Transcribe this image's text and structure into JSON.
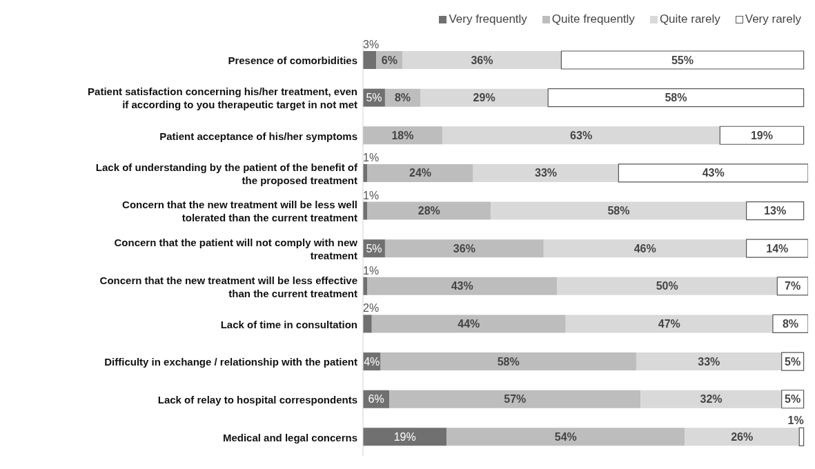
{
  "chart_data": {
    "type": "bar",
    "orientation": "horizontal",
    "stacked": true,
    "legend": "top right",
    "tick_labels": "y",
    "categories": [
      "Presence of comorbidities",
      "Patient satisfaction concerning his/her treatment, even if according to you therapeutic target in not met",
      "Patient acceptance of his/her symptoms",
      "Lack of understanding by the patient of the benefit of the proposed treatment",
      "Concern that the new treatment will be less well tolerated than the current treatment",
      "Concern that the patient will not comply with new treatment",
      "Concern that the new treatment will be less effective than the current treatment",
      "Lack of time in consultation",
      "Difficulty in exchange / relationship with the patient",
      "Lack of relay to hospital correspondents",
      "Medical and legal concerns"
    ],
    "series": [
      {
        "name": "Very frequently",
        "color": "#707070",
        "values": [
          3,
          5,
          null,
          1,
          1,
          5,
          1,
          2,
          4,
          6,
          19
        ],
        "value_labels": [
          "3%",
          "5%",
          null,
          "1%",
          "1%",
          "5%",
          "1%",
          "2%",
          "4%",
          "6%",
          "19%"
        ]
      },
      {
        "name": "Quite frequently",
        "color": "#bdbdbd",
        "values": [
          6,
          8,
          18,
          24,
          28,
          36,
          43,
          44,
          58,
          57,
          54
        ],
        "value_labels": [
          "6%",
          "8%",
          "18%",
          "24%",
          "28%",
          "36%",
          "43%",
          "44%",
          "58%",
          "57%",
          "54%"
        ]
      },
      {
        "name": "Quite rarely",
        "color": "#d9d9d9",
        "values": [
          36,
          29,
          63,
          33,
          58,
          46,
          50,
          47,
          33,
          32,
          26
        ],
        "value_labels": [
          "36%",
          "29%",
          "63%",
          "33%",
          "58%",
          "46%",
          "50%",
          "47%",
          "33%",
          "32%",
          "26%"
        ]
      },
      {
        "name": "Very rarely",
        "color": "#ffffff",
        "values": [
          55,
          58,
          19,
          43,
          13,
          14,
          7,
          8,
          5,
          5,
          1
        ],
        "value_labels": [
          "55%",
          "58%",
          "19%",
          "43%",
          "13%",
          "14%",
          "7%",
          "8%",
          "5%",
          "5%",
          "1%"
        ]
      }
    ]
  }
}
